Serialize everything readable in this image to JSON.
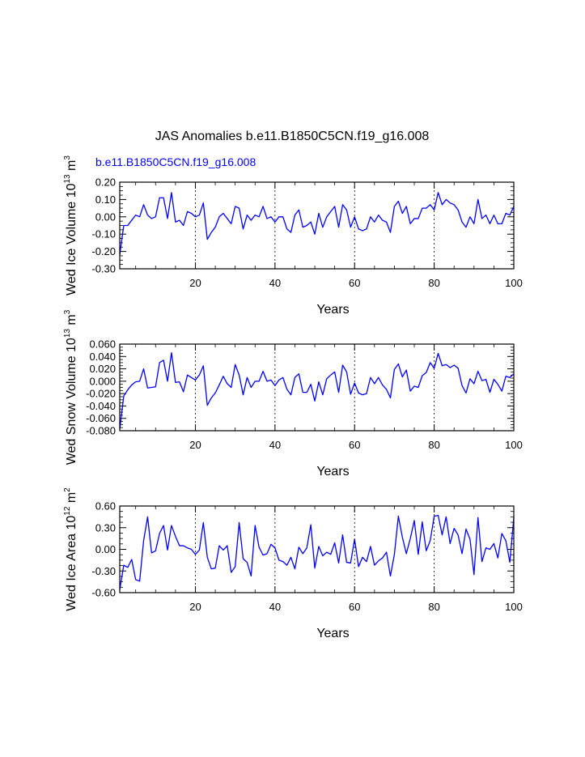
{
  "figure": {
    "title": "JAS Anomalies b.e11.B1850C5CN.f19_g16.008",
    "case_label": "b.e11.B1850C5CN.f19_g16.008",
    "case_label_color": "#0000ff",
    "line_color": "#0000ff"
  },
  "chart_data": [
    {
      "type": "line",
      "ylabel_main": "Wed Ice Volume 10",
      "ylabel_exp": "13",
      "ylabel_unit": "m",
      "ylabel_unit_exp": "3",
      "xlabel": "Years",
      "xlim": [
        1,
        100
      ],
      "ylim": [
        -0.3,
        0.2
      ],
      "yticks": [
        0.2,
        0.1,
        0.0,
        -0.1,
        -0.2,
        -0.3
      ],
      "ytick_labels": [
        "0.20",
        "0.10",
        "0.00",
        "-0.10",
        "-0.20",
        "-0.30"
      ],
      "xticks": [
        20,
        40,
        60,
        80,
        100
      ],
      "xtick_labels": [
        "20",
        "40",
        "60",
        "80",
        "100"
      ],
      "gridlines_x": [
        20,
        40,
        60,
        80
      ],
      "series": [
        {
          "name": "Wed Ice Volume",
          "x": [
            1,
            2,
            3,
            4,
            5,
            6,
            7,
            8,
            9,
            10,
            11,
            12,
            13,
            14,
            15,
            16,
            17,
            18,
            19,
            20,
            21,
            22,
            23,
            24,
            25,
            26,
            27,
            28,
            29,
            30,
            31,
            32,
            33,
            34,
            35,
            36,
            37,
            38,
            39,
            40,
            41,
            42,
            43,
            44,
            45,
            46,
            47,
            48,
            49,
            50,
            51,
            52,
            53,
            54,
            55,
            56,
            57,
            58,
            59,
            60,
            61,
            62,
            63,
            64,
            65,
            66,
            67,
            68,
            69,
            70,
            71,
            72,
            73,
            74,
            75,
            76,
            77,
            78,
            79,
            80,
            81,
            82,
            83,
            84,
            85,
            86,
            87,
            88,
            89,
            90,
            91,
            92,
            93,
            94,
            95,
            96,
            97,
            98,
            99,
            100
          ],
          "values": [
            -0.22,
            -0.05,
            -0.05,
            -0.02,
            0.01,
            0.0,
            0.07,
            0.01,
            -0.01,
            0.0,
            0.11,
            0.11,
            -0.01,
            0.14,
            -0.03,
            -0.02,
            -0.05,
            0.03,
            0.02,
            0.0,
            0.01,
            0.08,
            -0.13,
            -0.09,
            -0.06,
            0.0,
            0.02,
            -0.01,
            -0.04,
            0.06,
            0.05,
            -0.07,
            0.01,
            -0.02,
            0.01,
            0.0,
            0.06,
            -0.01,
            0.0,
            -0.03,
            0.0,
            0.0,
            -0.07,
            -0.09,
            0.01,
            0.04,
            -0.06,
            -0.05,
            -0.03,
            -0.1,
            0.02,
            -0.06,
            0.0,
            0.03,
            0.06,
            -0.06,
            0.07,
            0.04,
            -0.06,
            0.0,
            -0.07,
            -0.08,
            -0.07,
            0.0,
            -0.03,
            0.01,
            -0.02,
            -0.03,
            -0.09,
            0.06,
            0.09,
            0.02,
            0.06,
            -0.04,
            -0.01,
            -0.01,
            0.05,
            0.05,
            0.07,
            0.04,
            0.14,
            0.07,
            0.1,
            0.08,
            0.07,
            0.04,
            -0.03,
            -0.06,
            0.0,
            -0.04,
            0.1,
            -0.01,
            0.01,
            -0.04,
            0.01,
            -0.04,
            -0.04,
            0.02,
            0.01,
            0.06
          ]
        }
      ]
    },
    {
      "type": "line",
      "ylabel_main": "Wed Snow Volume 10",
      "ylabel_exp": "13",
      "ylabel_unit": "m",
      "ylabel_unit_exp": "3",
      "xlabel": "Years",
      "xlim": [
        1,
        100
      ],
      "ylim": [
        -0.08,
        0.06
      ],
      "yticks": [
        0.06,
        0.04,
        0.02,
        0.0,
        -0.02,
        -0.04,
        -0.06,
        -0.08
      ],
      "ytick_labels": [
        "0.060",
        "0.040",
        "0.020",
        "0.000",
        "-0.020",
        "-0.040",
        "-0.060",
        "-0.080"
      ],
      "xticks": [
        20,
        40,
        60,
        80,
        100
      ],
      "xtick_labels": [
        "20",
        "40",
        "60",
        "80",
        "100"
      ],
      "gridlines_x": [
        20,
        40,
        60,
        80
      ],
      "series": [
        {
          "name": "Wed Snow Volume",
          "x": [
            1,
            2,
            3,
            4,
            5,
            6,
            7,
            8,
            9,
            10,
            11,
            12,
            13,
            14,
            15,
            16,
            17,
            18,
            19,
            20,
            21,
            22,
            23,
            24,
            25,
            26,
            27,
            28,
            29,
            30,
            31,
            32,
            33,
            34,
            35,
            36,
            37,
            38,
            39,
            40,
            41,
            42,
            43,
            44,
            45,
            46,
            47,
            48,
            49,
            50,
            51,
            52,
            53,
            54,
            55,
            56,
            57,
            58,
            59,
            60,
            61,
            62,
            63,
            64,
            65,
            66,
            67,
            68,
            69,
            70,
            71,
            72,
            73,
            74,
            75,
            76,
            77,
            78,
            79,
            80,
            81,
            82,
            83,
            84,
            85,
            86,
            87,
            88,
            89,
            90,
            91,
            92,
            93,
            94,
            95,
            96,
            97,
            98,
            99,
            100
          ],
          "values": [
            -0.078,
            -0.024,
            -0.014,
            -0.006,
            -0.001,
            0.0,
            0.02,
            -0.011,
            -0.01,
            -0.009,
            0.03,
            0.034,
            0.0,
            0.046,
            -0.002,
            -0.001,
            -0.017,
            0.01,
            0.006,
            0.002,
            0.01,
            0.025,
            -0.039,
            -0.027,
            -0.019,
            -0.006,
            0.008,
            -0.004,
            -0.01,
            0.027,
            0.01,
            -0.022,
            0.006,
            -0.01,
            0.0,
            0.0,
            0.016,
            0.0,
            0.002,
            -0.007,
            0.002,
            0.006,
            -0.013,
            -0.022,
            0.006,
            0.012,
            -0.018,
            -0.018,
            -0.005,
            -0.032,
            -0.001,
            -0.022,
            0.004,
            0.01,
            0.015,
            -0.018,
            0.026,
            0.015,
            -0.021,
            -0.003,
            -0.019,
            -0.022,
            -0.02,
            0.006,
            -0.004,
            0.006,
            -0.006,
            -0.013,
            -0.027,
            0.019,
            0.028,
            0.007,
            0.018,
            -0.016,
            -0.008,
            -0.01,
            0.009,
            0.014,
            0.03,
            0.021,
            0.045,
            0.025,
            0.027,
            0.022,
            0.026,
            0.021,
            -0.007,
            -0.019,
            0.004,
            -0.004,
            0.016,
            0.001,
            0.003,
            -0.018,
            0.003,
            -0.005,
            -0.016,
            0.008,
            0.006,
            0.012
          ]
        }
      ]
    },
    {
      "type": "line",
      "ylabel_main": "Wed Ice Area 10",
      "ylabel_exp": "12",
      "ylabel_unit": "m",
      "ylabel_unit_exp": "2",
      "xlabel": "Years",
      "xlim": [
        1,
        100
      ],
      "ylim": [
        -0.6,
        0.6
      ],
      "yticks": [
        0.6,
        0.3,
        0.0,
        -0.3,
        -0.6
      ],
      "ytick_labels": [
        "0.60",
        "0.30",
        "0.00",
        "-0.30",
        "-0.60"
      ],
      "xticks": [
        20,
        40,
        60,
        80,
        100
      ],
      "xtick_labels": [
        "20",
        "40",
        "60",
        "80",
        "100"
      ],
      "gridlines_x": [
        20,
        40,
        60,
        80
      ],
      "series": [
        {
          "name": "Wed Ice Area",
          "x": [
            1,
            2,
            3,
            4,
            5,
            6,
            7,
            8,
            9,
            10,
            11,
            12,
            13,
            14,
            15,
            16,
            17,
            18,
            19,
            20,
            21,
            22,
            23,
            24,
            25,
            26,
            27,
            28,
            29,
            30,
            31,
            32,
            33,
            34,
            35,
            36,
            37,
            38,
            39,
            40,
            41,
            42,
            43,
            44,
            45,
            46,
            47,
            48,
            49,
            50,
            51,
            52,
            53,
            54,
            55,
            56,
            57,
            58,
            59,
            60,
            61,
            62,
            63,
            64,
            65,
            66,
            67,
            68,
            69,
            70,
            71,
            72,
            73,
            74,
            75,
            76,
            77,
            78,
            79,
            80,
            81,
            82,
            83,
            84,
            85,
            86,
            87,
            88,
            89,
            90,
            91,
            92,
            93,
            94,
            95,
            96,
            97,
            98,
            99,
            100
          ],
          "values": [
            -0.56,
            -0.22,
            -0.25,
            -0.14,
            -0.42,
            -0.44,
            0.12,
            0.45,
            -0.05,
            -0.02,
            0.22,
            0.33,
            -0.01,
            0.33,
            0.18,
            0.05,
            0.05,
            0.02,
            0.0,
            -0.07,
            -0.01,
            0.37,
            -0.11,
            -0.27,
            -0.26,
            0.05,
            -0.01,
            0.05,
            -0.32,
            -0.24,
            0.37,
            -0.13,
            -0.18,
            -0.37,
            0.33,
            0.03,
            -0.08,
            -0.06,
            0.07,
            0.02,
            -0.15,
            -0.17,
            -0.22,
            -0.11,
            -0.27,
            0.03,
            -0.06,
            0.02,
            0.34,
            -0.26,
            0.04,
            -0.09,
            -0.04,
            -0.07,
            0.09,
            -0.19,
            0.2,
            -0.18,
            -0.19,
            0.14,
            -0.24,
            -0.11,
            -0.17,
            0.04,
            -0.22,
            -0.16,
            -0.12,
            -0.04,
            -0.37,
            -0.07,
            0.46,
            0.17,
            -0.06,
            0.15,
            0.4,
            -0.07,
            0.38,
            -0.02,
            0.12,
            0.46,
            0.47,
            0.2,
            0.45,
            0.08,
            0.29,
            0.2,
            -0.06,
            0.28,
            0.14,
            -0.35,
            0.44,
            -0.17,
            0.02,
            0.0,
            0.08,
            -0.12,
            0.22,
            0.12,
            -0.18,
            0.44
          ]
        }
      ]
    }
  ]
}
